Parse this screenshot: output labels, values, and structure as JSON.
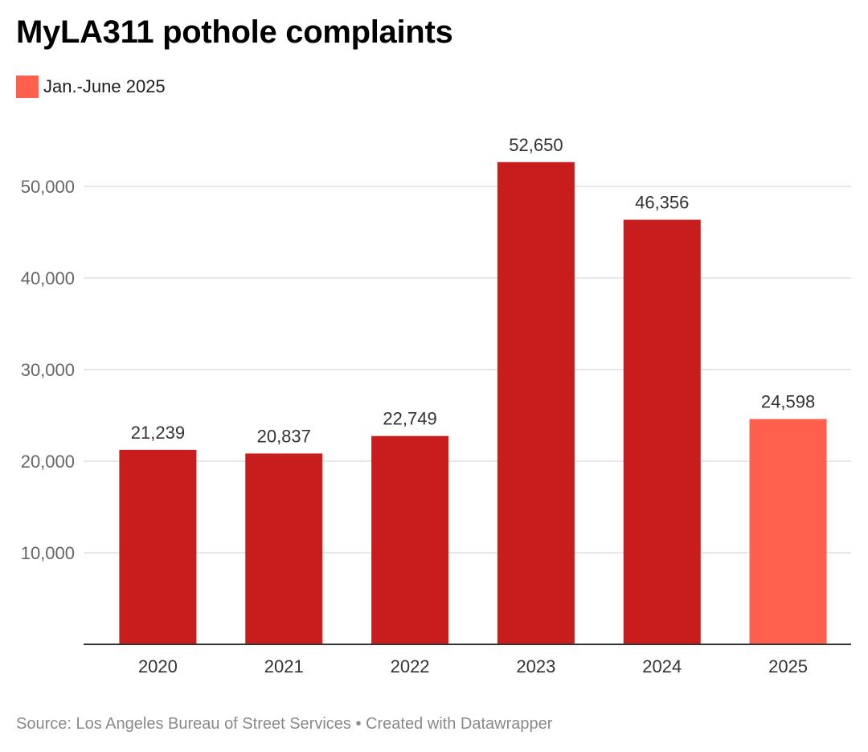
{
  "title": "MyLA311 pothole complaints",
  "legend": {
    "label": "Jan.-June 2025",
    "color": "#ff5f4d"
  },
  "footer": {
    "source": "Source: Los Angeles Bureau of Street Services",
    "separator": "•",
    "credit": "Created with Datawrapper"
  },
  "colors": {
    "bar_full_year": "#c71d1d",
    "bar_partial_year": "#ff5f4d",
    "grid": "#d9d9d9",
    "baseline": "#333333",
    "tick_text": "#666666",
    "label_text": "#333333"
  },
  "chart_data": {
    "type": "bar",
    "title": "MyLA311 pothole complaints",
    "xlabel": "",
    "ylabel": "",
    "categories": [
      "2020",
      "2021",
      "2022",
      "2023",
      "2024",
      "2025"
    ],
    "values": [
      21239,
      20837,
      22749,
      52650,
      46356,
      24598
    ],
    "value_labels": [
      "21,239",
      "20,837",
      "22,749",
      "52,650",
      "46,356",
      "24,598"
    ],
    "highlight_index": 5,
    "legend_entries": [
      "Jan.-June 2025"
    ],
    "legend_position": "top-left",
    "ylim": [
      0,
      55000
    ],
    "yticks": [
      10000,
      20000,
      30000,
      40000,
      50000
    ],
    "ytick_labels": [
      "10,000",
      "20,000",
      "30,000",
      "40,000",
      "50,000"
    ],
    "grid": true
  }
}
